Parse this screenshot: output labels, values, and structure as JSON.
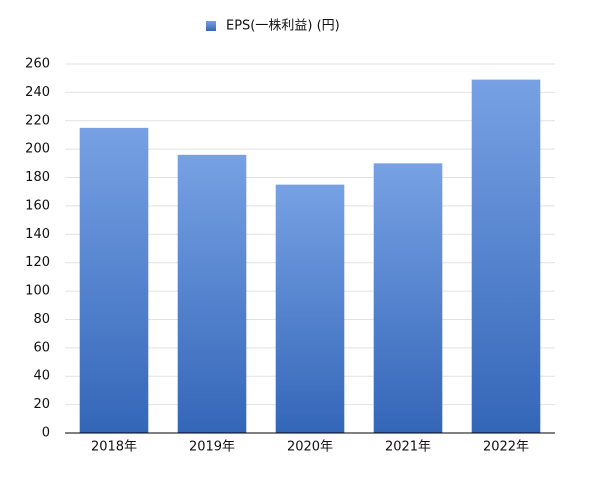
{
  "chart_data": {
    "type": "bar",
    "categories": [
      "2018年",
      "2019年",
      "2020年",
      "2021年",
      "2022年"
    ],
    "series": [
      {
        "name": "EPS(一株利益) (円)",
        "color": "#3d78d8",
        "values": [
          215,
          196,
          175,
          190,
          249
        ]
      }
    ],
    "ylim": [
      0,
      260
    ],
    "yticks": [
      0,
      20,
      40,
      60,
      80,
      100,
      120,
      140,
      160,
      180,
      200,
      220,
      240,
      260
    ],
    "grid": true,
    "legend": "top"
  }
}
